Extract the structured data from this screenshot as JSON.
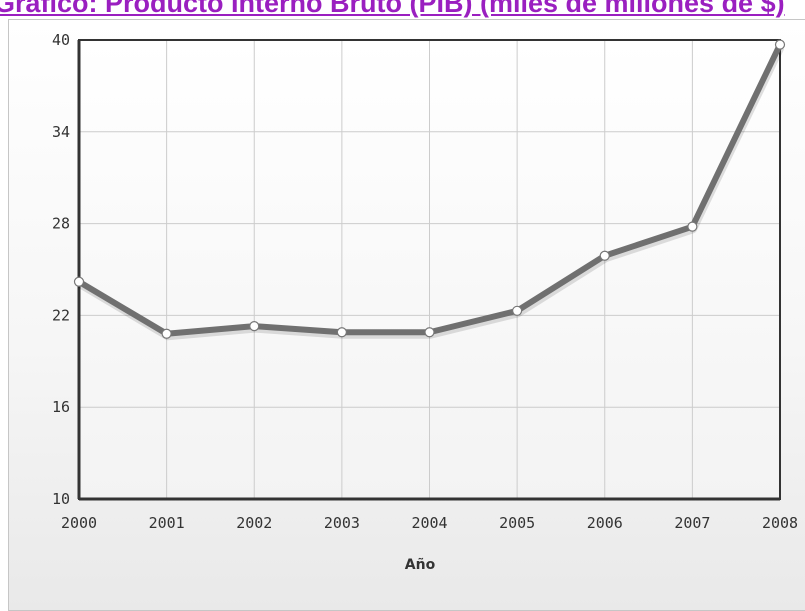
{
  "page": {
    "title": "Gráfico: Producto Interno Bruto (PIB) (miles de millones de $)"
  },
  "chart_data": {
    "type": "line",
    "title": "Gráfico: Producto Interno Bruto (PIB) (miles de millones de $)",
    "xlabel": "Año",
    "ylabel": "",
    "x": [
      2000,
      2001,
      2002,
      2003,
      2004,
      2005,
      2006,
      2007,
      2008
    ],
    "x_tick_labels": [
      "2000",
      "2001",
      "2002",
      "2003",
      "2004",
      "2005",
      "2006",
      "2007",
      "2008"
    ],
    "ylim": [
      10,
      40
    ],
    "y_ticks": [
      10,
      16,
      22,
      28,
      34,
      40
    ],
    "y_tick_labels": [
      "10",
      "16",
      "22",
      "28",
      "34",
      "40"
    ],
    "grid": true,
    "legend": "none",
    "series": [
      {
        "values": [
          24.2,
          20.8,
          21.3,
          20.9,
          20.9,
          22.3,
          25.9,
          27.8,
          39.7
        ],
        "color": "#707070"
      }
    ],
    "colors": {
      "title": "#9a1fc0",
      "line": "#707070",
      "marker_fill": "#ffffff",
      "grid": "#cccccc",
      "axis": "#333333"
    }
  }
}
